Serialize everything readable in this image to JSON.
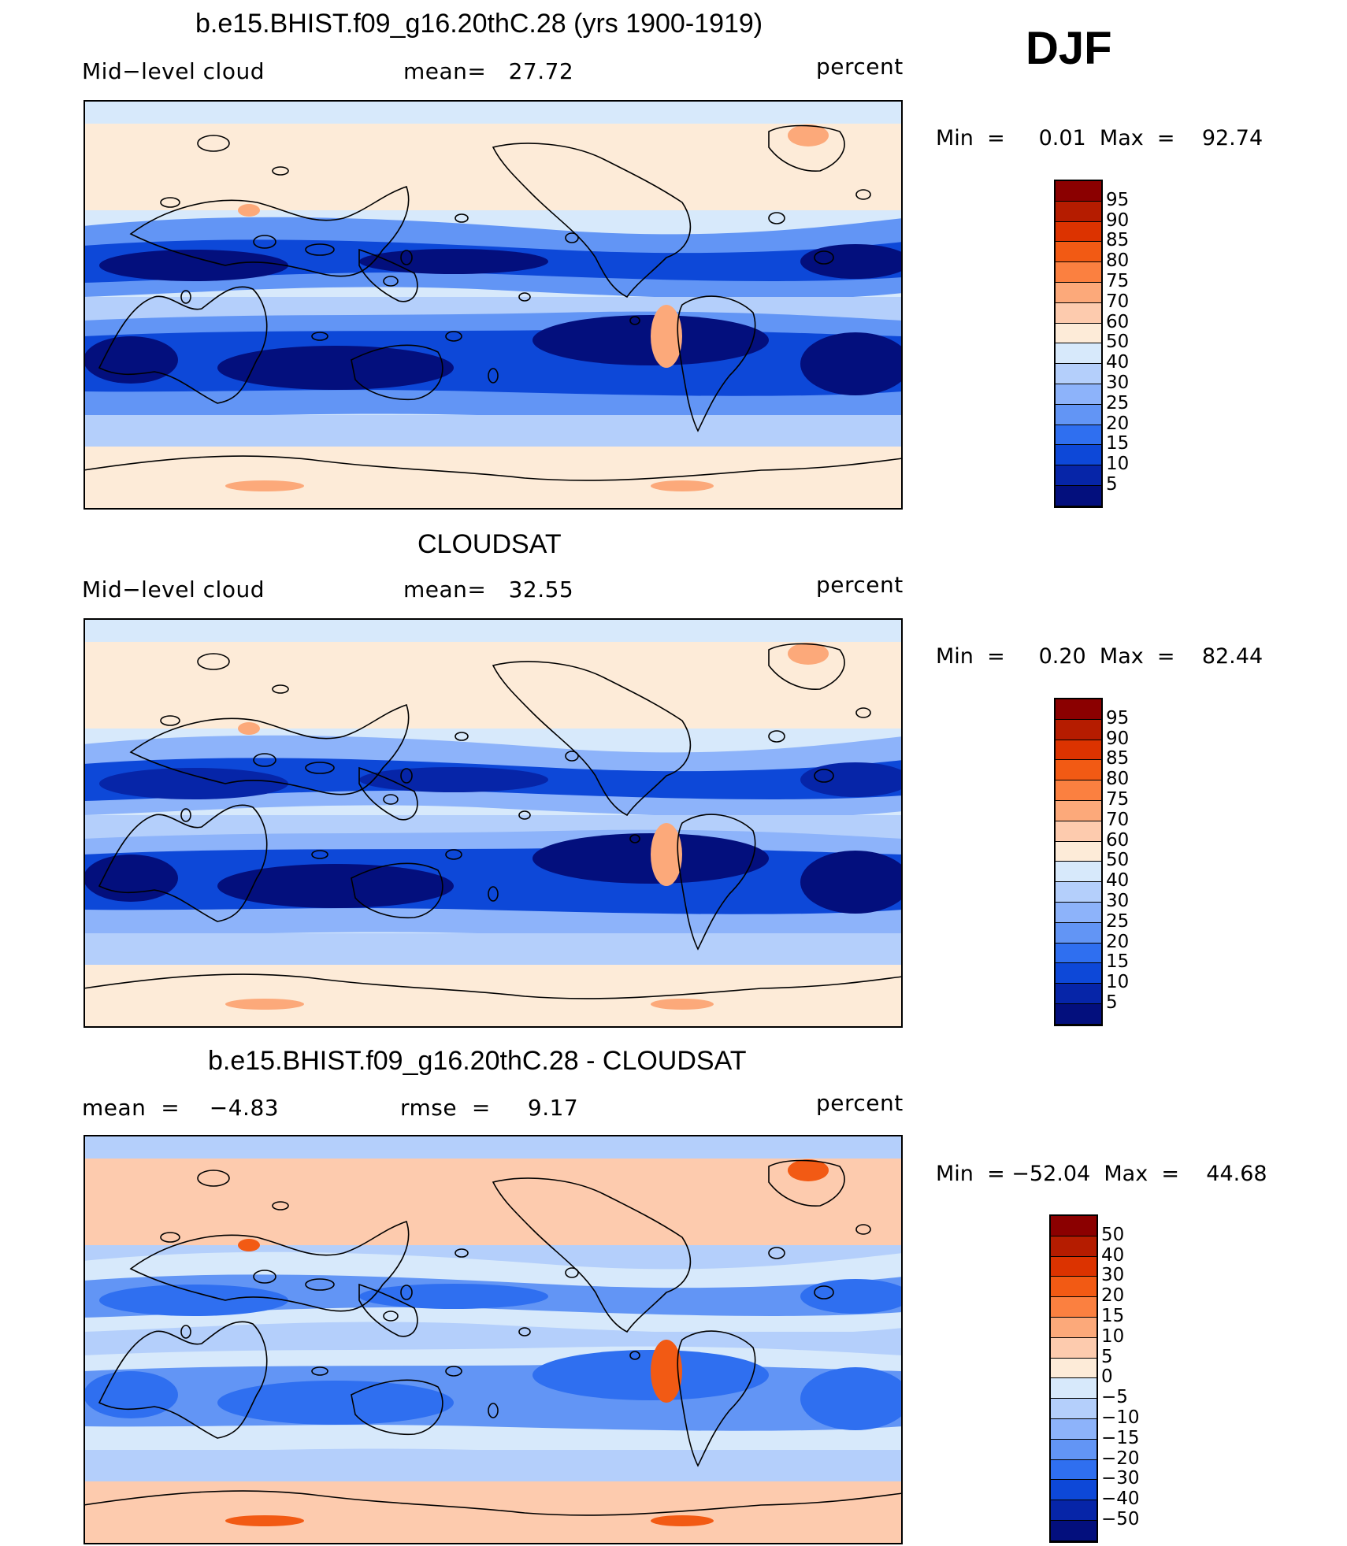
{
  "season": "DJF",
  "panels": [
    {
      "title": "b.e15.BHIST.f09_g16.20thC.28 (yrs 1900-1919)",
      "left": "Mid−level cloud",
      "middle": "mean=   27.72",
      "right": "percent",
      "minmax": "Min  =     0.01  Max  =    92.74",
      "colorbar": {
        "labels": [
          "95",
          "90",
          "85",
          "80",
          "75",
          "70",
          "60",
          "50",
          "40",
          "30",
          "25",
          "20",
          "15",
          "10",
          "5"
        ],
        "colors": [
          "#8b0000",
          "#b51c00",
          "#dc3300",
          "#f25a14",
          "#fb8040",
          "#fca97a",
          "#fdcbae",
          "#fdebd8",
          "#d7e9fb",
          "#b4cffb",
          "#8db3fa",
          "#6295f5",
          "#2f6ff0",
          "#0d48d8",
          "#0625a8",
          "#030f7d"
        ]
      },
      "map_fills": [
        "#fdebd8",
        "#d7e9fb",
        "#0d48d8",
        "#030f7d",
        "#6295f5",
        "#030f7d",
        "#b4cffb",
        "#fdebd8",
        "#fca97a"
      ]
    },
    {
      "title": "CLOUDSAT",
      "left": "Mid−level cloud",
      "middle": "mean=   32.55",
      "right": "percent",
      "minmax": "Min  =     0.20  Max  =    82.44",
      "colorbar": {
        "labels": [
          "95",
          "90",
          "85",
          "80",
          "75",
          "70",
          "60",
          "50",
          "40",
          "30",
          "25",
          "20",
          "15",
          "10",
          "5"
        ],
        "colors": [
          "#8b0000",
          "#b51c00",
          "#dc3300",
          "#f25a14",
          "#fb8040",
          "#fca97a",
          "#fdcbae",
          "#fdebd8",
          "#d7e9fb",
          "#b4cffb",
          "#8db3fa",
          "#6295f5",
          "#2f6ff0",
          "#0d48d8",
          "#0625a8",
          "#030f7d"
        ]
      },
      "map_fills": [
        "#fdebd8",
        "#d7e9fb",
        "#0d48d8",
        "#0625a8",
        "#8db3fa",
        "#030f7d",
        "#b4cffb",
        "#fdebd8",
        "#fca97a"
      ]
    },
    {
      "title": "b.e15.BHIST.f09_g16.20thC.28 - CLOUDSAT",
      "left": "mean  =    −4.83",
      "middle": "rmse  =     9.17",
      "right": "percent",
      "minmax": "Min  = −52.04  Max  =    44.68",
      "colorbar": {
        "labels": [
          "50",
          "40",
          "30",
          "20",
          "15",
          "10",
          "5",
          "0",
          "−5",
          "−10",
          "−15",
          "−20",
          "−30",
          "−40",
          "−50"
        ],
        "colors": [
          "#8b0000",
          "#b51c00",
          "#dc3300",
          "#f25a14",
          "#fb8040",
          "#fca97a",
          "#fdcbae",
          "#fdebd8",
          "#d7e9fb",
          "#b4cffb",
          "#8db3fa",
          "#6295f5",
          "#2f6ff0",
          "#0d48d8",
          "#0625a8",
          "#030f7d"
        ]
      },
      "map_fills": [
        "#d7e9fb",
        "#b4cffb",
        "#6295f5",
        "#2f6ff0",
        "#d7e9fb",
        "#2f6ff0",
        "#b4cffb",
        "#fdcbae",
        "#f25a14"
      ]
    }
  ]
}
